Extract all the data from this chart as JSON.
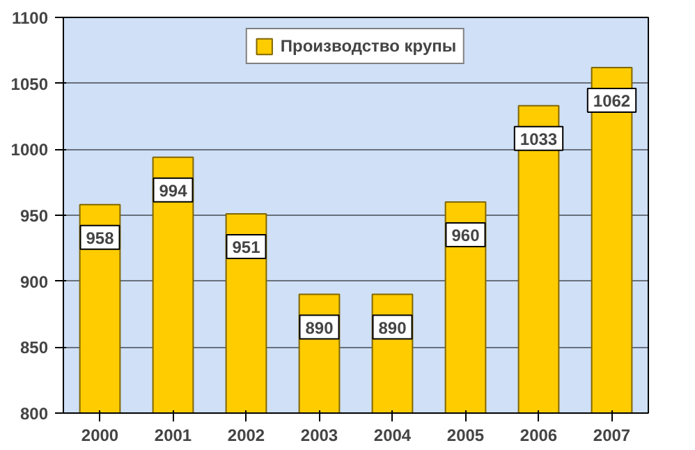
{
  "chart_data": {
    "type": "bar",
    "categories": [
      "2000",
      "2001",
      "2002",
      "2003",
      "2004",
      "2005",
      "2006",
      "2007"
    ],
    "series": [
      {
        "name": "Производство крупы",
        "color": "#ffcc00",
        "values": [
          958,
          994,
          951,
          890,
          890,
          960,
          1033,
          1062
        ]
      }
    ],
    "ylim": [
      800,
      1100
    ],
    "yticks": [
      800,
      850,
      900,
      950,
      1000,
      1050,
      1100
    ],
    "grid": "y",
    "legend": "top",
    "data_labels": true
  }
}
